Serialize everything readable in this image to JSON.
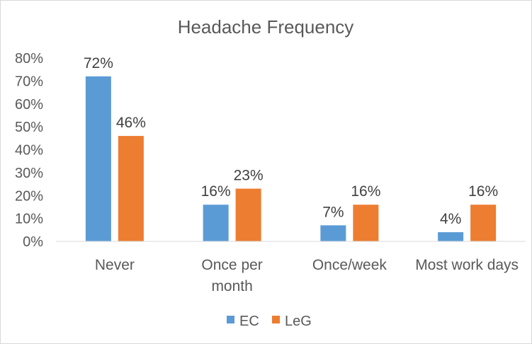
{
  "chart_data": {
    "type": "bar",
    "title": "Headache Frequency",
    "xlabel": "",
    "ylabel": "",
    "categories": [
      [
        "Never"
      ],
      [
        "Once per",
        "month"
      ],
      [
        "Once/week"
      ],
      [
        "Most work days"
      ]
    ],
    "series": [
      {
        "name": "EC",
        "values": [
          72,
          16,
          7,
          4
        ],
        "labels": [
          "72%",
          "16%",
          "7%",
          "4%"
        ],
        "color": "#5b9bd5"
      },
      {
        "name": "LeG",
        "values": [
          46,
          23,
          16,
          16
        ],
        "labels": [
          "46%",
          "23%",
          "16%",
          "16%"
        ],
        "color": "#ed7d31"
      }
    ],
    "ylim": [
      0,
      80
    ],
    "yticks": [
      "0%",
      "10%",
      "20%",
      "30%",
      "40%",
      "50%",
      "60%",
      "70%",
      "80%"
    ],
    "grid": false,
    "legend": "bottom"
  }
}
